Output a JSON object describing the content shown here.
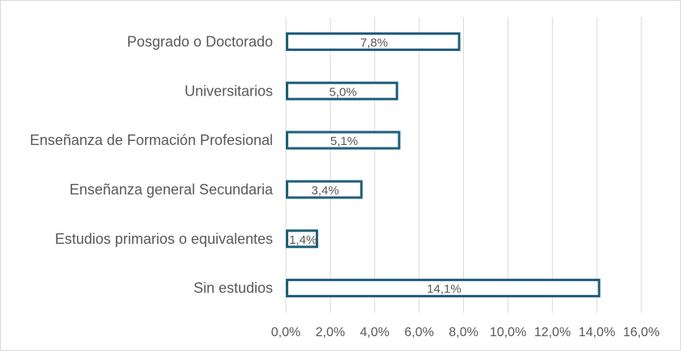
{
  "chart_data": {
    "type": "bar",
    "orientation": "horizontal",
    "categories": [
      "Posgrado o Doctorado",
      "Universitarios",
      "Enseñanza de Formación Profesional",
      "Enseñanza general Secundaria",
      "Estudios primarios o equivalentes",
      "Sin estudios"
    ],
    "values": [
      7.8,
      5.0,
      5.1,
      3.4,
      1.4,
      14.1
    ],
    "data_labels": [
      "7,8%",
      "5,0%",
      "5,1%",
      "3,4%",
      "1,4%",
      "14,1%"
    ],
    "xlim": [
      0,
      16
    ],
    "xticks": [
      "0,0%",
      "2,0%",
      "4,0%",
      "6,0%",
      "8,0%",
      "10,0%",
      "12,0%",
      "14,0%",
      "16,0%"
    ],
    "grid": "vertical",
    "legend": "none",
    "title": "",
    "xlabel": "",
    "ylabel": "",
    "colors": {
      "bar_border": "#1f5f7a",
      "bar_fill": "#ffffff",
      "grid": "#d9d9d9",
      "text": "#595959"
    }
  }
}
